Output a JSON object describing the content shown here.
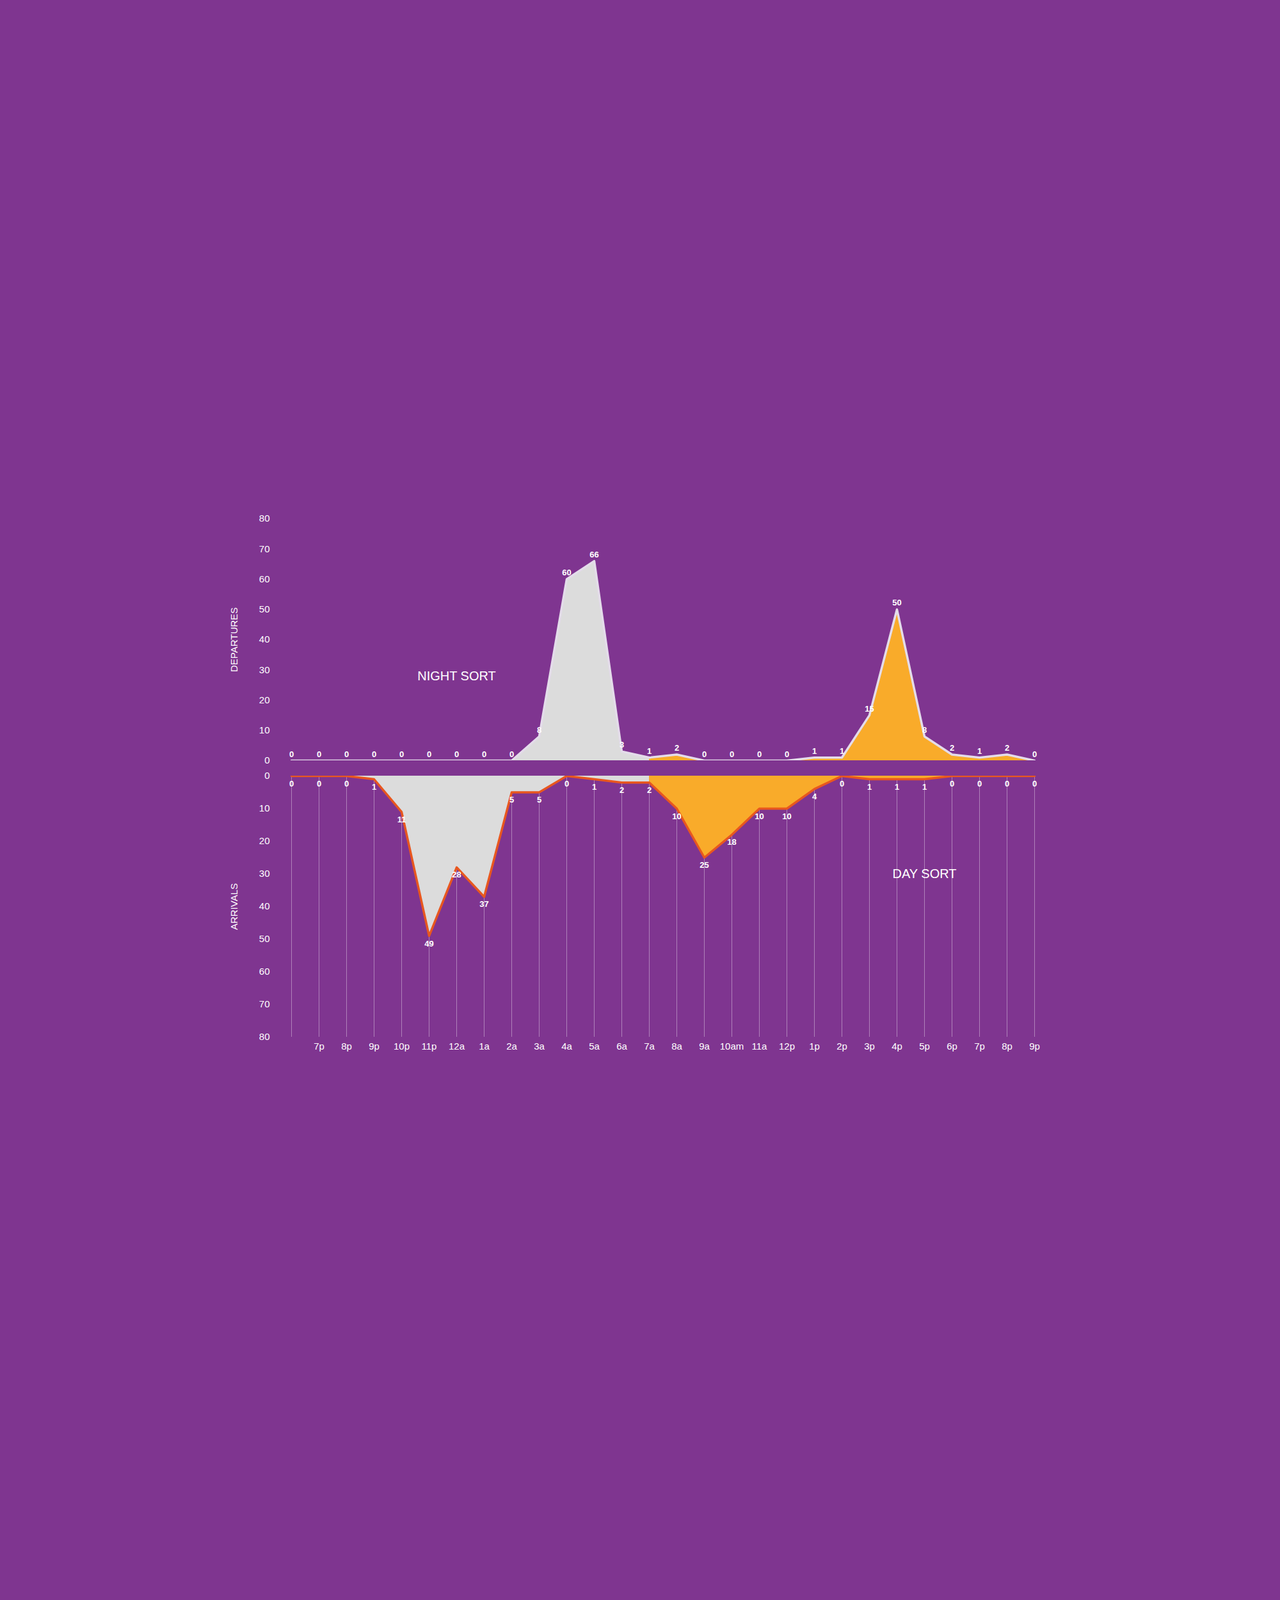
{
  "chart_data": [
    {
      "type": "area",
      "y_label": "DEPARTURES",
      "categories": [
        null,
        "7p",
        "8p",
        "9p",
        "10p",
        "11p",
        "12a",
        "1a",
        "2a",
        "3a",
        "4a",
        "5a",
        "6a",
        "7a",
        "8a",
        "9a",
        "10am",
        "11a",
        "12p",
        "1p",
        "2p",
        "3p",
        "4p",
        "5p",
        "6p",
        "7p",
        "8p",
        "9p"
      ],
      "values": [
        0,
        0,
        0,
        0,
        0,
        0,
        0,
        0,
        0,
        8,
        60,
        66,
        3,
        1,
        2,
        0,
        0,
        0,
        0,
        1,
        1,
        15,
        50,
        8,
        2,
        1,
        2,
        0
      ],
      "color": "#e4dcea",
      "ylim": [
        0,
        80
      ],
      "yticks": [
        0,
        10,
        20,
        30,
        40,
        50,
        60,
        70,
        80
      ],
      "data_labels": true,
      "tick_labels": "y",
      "periods": [
        {
          "from": 0,
          "to": 13,
          "color": "#dcdcdc"
        },
        {
          "from": 13,
          "to": 27,
          "color": "#f9ab2a"
        }
      ],
      "annotations": [
        {
          "text": "NIGHT SORT",
          "x": 6,
          "y": 28
        }
      ]
    },
    {
      "type": "area",
      "y_label": "ARRIVALS",
      "categories": [
        null,
        "7p",
        "8p",
        "9p",
        "10p",
        "11p",
        "12a",
        "1a",
        "2a",
        "3a",
        "4a",
        "5a",
        "6a",
        "7a",
        "8a",
        "9a",
        "10am",
        "11a",
        "12p",
        "1p",
        "2p",
        "3p",
        "4p",
        "5p",
        "6p",
        "7p",
        "8p",
        "9p"
      ],
      "values": [
        0,
        0,
        0,
        1,
        11,
        49,
        28,
        37,
        5,
        5,
        0,
        1,
        2,
        2,
        10,
        25,
        18,
        10,
        10,
        4,
        0,
        1,
        1,
        1,
        0,
        0,
        0,
        0
      ],
      "color": "#e8571f",
      "ylim": [
        80,
        0
      ],
      "yticks": [
        0,
        10,
        20,
        30,
        40,
        50,
        60,
        70,
        80
      ],
      "data_labels": true,
      "tick_labels": true,
      "periods": [
        {
          "from": 0,
          "to": 13,
          "color": "#dcdcdc"
        },
        {
          "from": 13,
          "to": 27,
          "color": "#f9ab2a"
        }
      ],
      "annotations": [
        {
          "text": "DAY SORT",
          "x": 23,
          "y": 30
        }
      ]
    }
  ]
}
